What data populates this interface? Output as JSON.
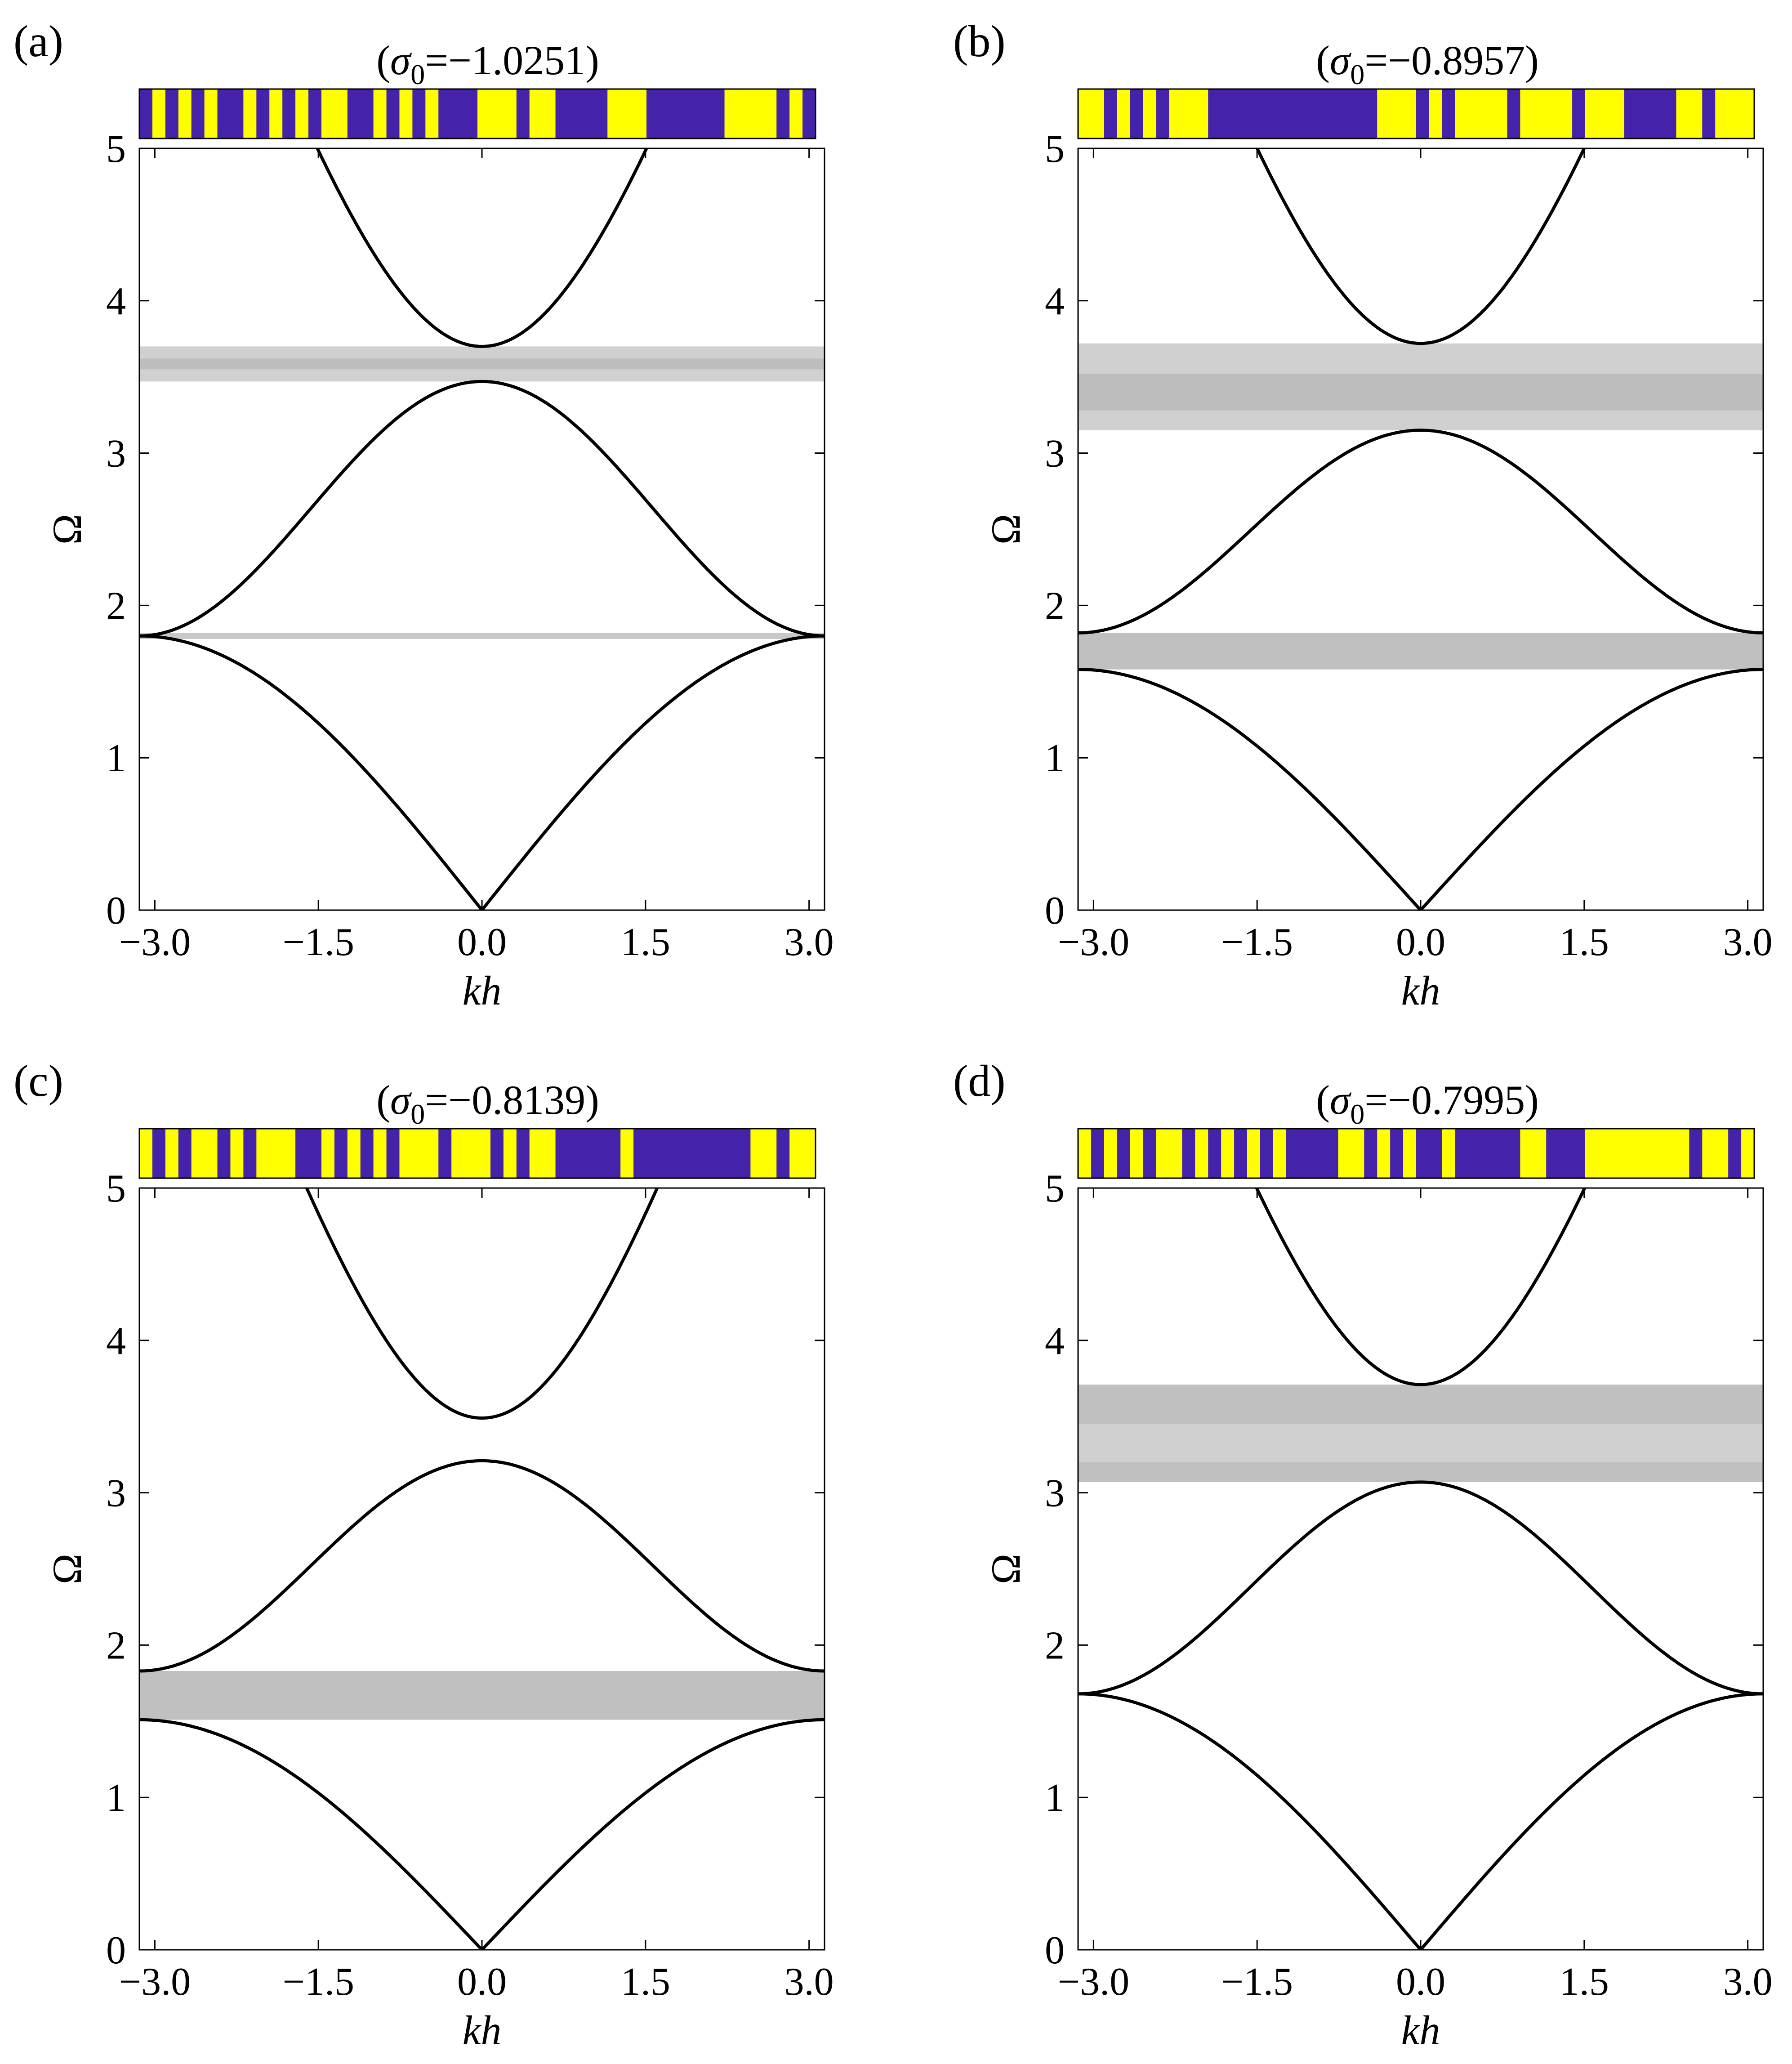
{
  "chart_data": [
    {
      "type": "line",
      "panel_label": "(a)",
      "title_prefix": "(",
      "title_symbol": "σ",
      "title_subscript": "0",
      "title_value": "=−1.0251)",
      "xlabel": "kh",
      "ylabel": "Ω",
      "xlim": [
        -3.1416,
        3.1416
      ],
      "ylim": [
        0,
        5
      ],
      "xticks": [
        "−3.0",
        "−1.5",
        "0.0",
        "1.5",
        "3.0"
      ],
      "xtick_values": [
        -3.0,
        -1.5,
        0.0,
        1.5,
        3.0
      ],
      "yticks": [
        "0",
        "1",
        "2",
        "3",
        "4",
        "5"
      ],
      "ytick_values": [
        0,
        1,
        2,
        3,
        4,
        5
      ],
      "bands": [
        {
          "kind": "gap",
          "y0": 0.0,
          "y1": 1.8
        },
        {
          "kind": "pass",
          "y0": 1.8,
          "y1": 3.47
        },
        {
          "kind": "pass",
          "y0": 3.7,
          "y1": 7.2
        }
      ],
      "band_gaps": [
        {
          "y0": 1.78,
          "y1": 1.82,
          "color": "#c8c8c8"
        },
        {
          "y0": 3.47,
          "y1": 3.7,
          "color": "#d0d0d0"
        },
        {
          "y0": 3.55,
          "y1": 3.62,
          "color": "#bdbdbd"
        }
      ],
      "curves": [
        {
          "name": "",
          "lower": 0.0,
          "upper": 1.8
        },
        {
          "name": "",
          "lower": 1.8,
          "upper": 3.47
        },
        {
          "name": "",
          "lower": 3.7,
          "upper": 7.2
        }
      ],
      "strip_colors": {
        "a": "#4422aa",
        "b": "#ffff00"
      },
      "strip_pattern": [
        1,
        0,
        1,
        0,
        1,
        0,
        1,
        1,
        0,
        1,
        0,
        1,
        0,
        1,
        0,
        0,
        1,
        1,
        0,
        1,
        0,
        1,
        0,
        1,
        1,
        1,
        0,
        0,
        0,
        1,
        0,
        0,
        1,
        1,
        1,
        1,
        0,
        0,
        0,
        1,
        1,
        1,
        1,
        1,
        1,
        0,
        0,
        0,
        0,
        1,
        0,
        1
      ]
    },
    {
      "type": "line",
      "panel_label": "(b)",
      "title_prefix": "(",
      "title_symbol": "σ",
      "title_subscript": "0",
      "title_value": "=−0.8957)",
      "xlabel": "kh",
      "ylabel": "Ω",
      "xlim": [
        -3.1416,
        3.1416
      ],
      "ylim": [
        0,
        5
      ],
      "xticks": [
        "−3.0",
        "−1.5",
        "0.0",
        "1.5",
        "3.0"
      ],
      "xtick_values": [
        -3.0,
        -1.5,
        0.0,
        1.5,
        3.0
      ],
      "yticks": [
        "0",
        "1",
        "2",
        "3",
        "4",
        "5"
      ],
      "ytick_values": [
        0,
        1,
        2,
        3,
        4,
        5
      ],
      "band_gaps": [
        {
          "y0": 1.58,
          "y1": 1.82,
          "color": "#c0c0c0"
        },
        {
          "y0": 3.15,
          "y1": 3.72,
          "color": "#d0d0d0"
        },
        {
          "y0": 3.28,
          "y1": 3.52,
          "color": "#bdbdbd"
        }
      ],
      "curves": [
        {
          "name": "",
          "lower": 0.0,
          "upper": 1.58
        },
        {
          "name": "",
          "lower": 1.82,
          "upper": 3.15
        },
        {
          "name": "",
          "lower": 3.72,
          "upper": 7.2
        }
      ],
      "strip_colors": {
        "a": "#4422aa",
        "b": "#ffff00"
      },
      "strip_pattern": [
        0,
        0,
        1,
        0,
        1,
        0,
        1,
        0,
        0,
        0,
        1,
        1,
        1,
        1,
        1,
        1,
        1,
        1,
        1,
        1,
        1,
        1,
        1,
        0,
        0,
        0,
        1,
        0,
        1,
        0,
        0,
        0,
        0,
        1,
        0,
        0,
        0,
        0,
        1,
        0,
        0,
        0,
        1,
        1,
        1,
        1,
        0,
        0,
        1,
        0,
        0,
        0
      ]
    },
    {
      "type": "line",
      "panel_label": "(c)",
      "title_prefix": "(",
      "title_symbol": "σ",
      "title_subscript": "0",
      "title_value": "=−0.8139)",
      "xlabel": "kh",
      "ylabel": "Ω",
      "xlim": [
        -3.1416,
        3.1416
      ],
      "ylim": [
        0,
        5
      ],
      "xticks": [
        "−3.0",
        "−1.5",
        "0.0",
        "1.5",
        "3.0"
      ],
      "xtick_values": [
        -3.0,
        -1.5,
        0.0,
        1.5,
        3.0
      ],
      "yticks": [
        "0",
        "1",
        "2",
        "3",
        "4",
        "5"
      ],
      "ytick_values": [
        0,
        1,
        2,
        3,
        4,
        5
      ],
      "band_gaps": [
        {
          "y0": 1.51,
          "y1": 1.83,
          "color": "#c0c0c0"
        }
      ],
      "curves": [
        {
          "name": "",
          "lower": 0.0,
          "upper": 1.51
        },
        {
          "name": "",
          "lower": 1.83,
          "upper": 3.21
        },
        {
          "name": "",
          "lower": 3.49,
          "upper": 7.2
        }
      ],
      "strip_colors": {
        "a": "#4422aa",
        "b": "#ffff00"
      },
      "strip_pattern": [
        0,
        1,
        0,
        1,
        0,
        0,
        1,
        0,
        1,
        0,
        0,
        0,
        1,
        1,
        0,
        1,
        0,
        1,
        0,
        1,
        0,
        0,
        0,
        1,
        0,
        0,
        0,
        1,
        0,
        1,
        0,
        0,
        1,
        1,
        1,
        1,
        1,
        0,
        1,
        1,
        1,
        1,
        1,
        1,
        1,
        1,
        1,
        0,
        0,
        1,
        0,
        0
      ]
    },
    {
      "type": "line",
      "panel_label": "(d)",
      "title_prefix": "(",
      "title_symbol": "σ",
      "title_subscript": "0",
      "title_value": "=−0.7995)",
      "xlabel": "kh",
      "ylabel": "Ω",
      "xlim": [
        -3.1416,
        3.1416
      ],
      "ylim": [
        0,
        5
      ],
      "xticks": [
        "−3.0",
        "−1.5",
        "0.0",
        "1.5",
        "3.0"
      ],
      "xtick_values": [
        -3.0,
        -1.5,
        0.0,
        1.5,
        3.0
      ],
      "yticks": [
        "0",
        "1",
        "2",
        "3",
        "4",
        "5"
      ],
      "ytick_values": [
        0,
        1,
        2,
        3,
        4,
        5
      ],
      "band_gaps": [
        {
          "y0": 3.07,
          "y1": 3.71,
          "color": "#d0d0d0"
        },
        {
          "y0": 3.45,
          "y1": 3.71,
          "color": "#c0c0c0"
        },
        {
          "y0": 3.07,
          "y1": 3.2,
          "color": "#c0c0c0"
        }
      ],
      "curves": [
        {
          "name": "",
          "lower": 0.0,
          "upper": 1.68
        },
        {
          "name": "",
          "lower": 1.68,
          "upper": 3.07
        },
        {
          "name": "",
          "lower": 3.71,
          "upper": 7.2
        }
      ],
      "strip_colors": {
        "a": "#4422aa",
        "b": "#ffff00"
      },
      "strip_pattern": [
        0,
        1,
        0,
        1,
        0,
        1,
        0,
        0,
        1,
        0,
        1,
        0,
        1,
        0,
        1,
        0,
        1,
        1,
        1,
        1,
        0,
        0,
        1,
        0,
        1,
        0,
        1,
        1,
        0,
        1,
        1,
        1,
        1,
        1,
        0,
        0,
        1,
        1,
        1,
        0,
        0,
        0,
        0,
        0,
        0,
        0,
        0,
        1,
        0,
        0,
        1,
        0
      ]
    }
  ]
}
